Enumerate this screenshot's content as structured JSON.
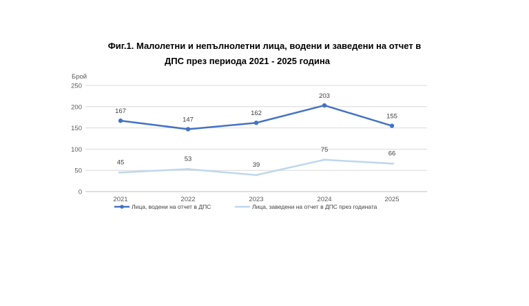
{
  "chart_data": {
    "type": "line",
    "title_line1": "Фиг.1. Малолетни и непълнолетни лица, водени и заведени на отчет в",
    "title_line2": "ДПС през периода 2021 - 2025 година",
    "ylabel": "Брой",
    "xlabel": "",
    "categories": [
      "2021",
      "2022",
      "2023",
      "2024",
      "2025"
    ],
    "ylim": [
      0,
      250
    ],
    "yticks": [
      0,
      50,
      100,
      150,
      200,
      250
    ],
    "grid": true,
    "legend_position": "bottom",
    "series": [
      {
        "name": "Лица, водени на отчет в ДПС",
        "values": [
          167,
          147,
          162,
          203,
          155
        ],
        "color": "#4472C4"
      },
      {
        "name": "Лица, заведени на отчет в ДПС през годината",
        "values": [
          45,
          53,
          39,
          75,
          66
        ],
        "color": "#BDD7EE"
      }
    ]
  }
}
